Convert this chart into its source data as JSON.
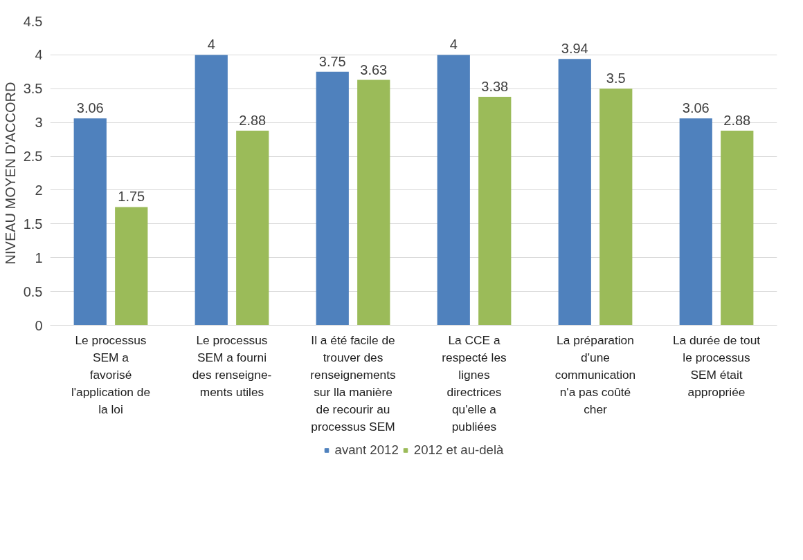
{
  "chart_data": {
    "type": "bar",
    "ylabel": "NIVEAU MOYEN D'ACCORD",
    "categories": [
      "Le processus\nSEM a\nfavorisé\nl'application de\nla loi",
      "Le processus\nSEM a fourni\ndes renseigne-\nments utiles",
      "Il a été facile de\ntrouver des\nrenseignements\nsur lla manière\nde recourir au\nprocessus SEM",
      "La CCE a\nrespecté les\nlignes\ndirectrices\nqu'elle a\npubliées",
      "La préparation\nd'une\ncommunication\nn'a pas coûté\ncher",
      "La durée de tout\nle processus\nSEM était\nappropriée"
    ],
    "series": [
      {
        "name": "avant 2012",
        "color": "#4f81bd",
        "values": [
          3.06,
          4,
          3.75,
          4,
          3.94,
          3.06
        ]
      },
      {
        "name": "2012 et au-delà",
        "color": "#9bbb59",
        "values": [
          1.75,
          2.88,
          3.63,
          3.38,
          3.5,
          2.88
        ]
      }
    ],
    "ylim": [
      0,
      4.5
    ],
    "yticks": [
      0,
      0.5,
      1,
      1.5,
      2,
      2.5,
      3,
      3.5,
      4,
      4.5
    ],
    "grid": "y",
    "legend": "bottom",
    "data_labels": true
  }
}
